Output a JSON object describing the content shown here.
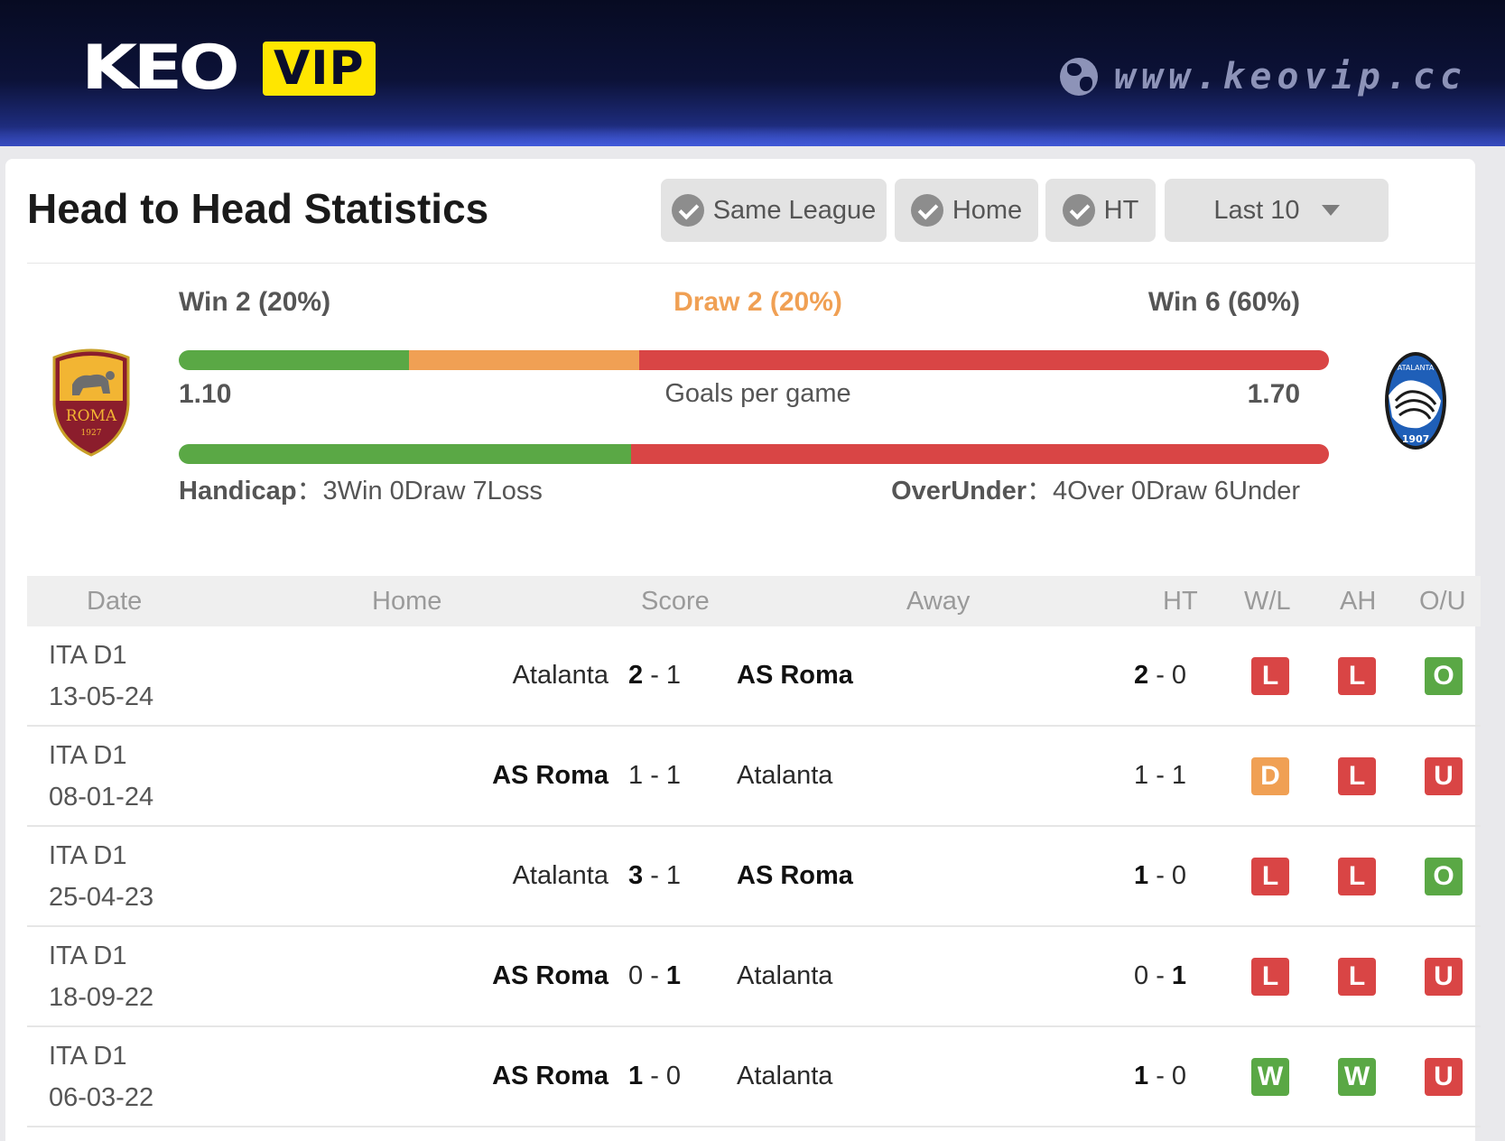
{
  "brand": {
    "logo_left": "KEO",
    "logo_right": "VIP",
    "site_url": "www.keovip.cc"
  },
  "title": "Head to Head Statistics",
  "filters": {
    "same_league": "Same League",
    "home": "Home",
    "ht": "HT",
    "last": "Last 10"
  },
  "summary": {
    "home_win": "Win 2 (20%)",
    "draw": "Draw 2 (20%)",
    "away_win": "Win 6 (60%)",
    "home_win_fraction": 0.2,
    "draw_fraction": 0.2,
    "away_win_fraction": 0.6,
    "home_goals": "1.10",
    "away_goals": "1.70",
    "goals_label": "Goals per game",
    "handicap_label": "Handicap",
    "handicap_value": "3Win 0Draw 7Loss",
    "overunder_label": "OverUnder",
    "overunder_value": "4Over 0Draw 6Under"
  },
  "teams": {
    "home_crest": "ROMA",
    "home_year": "1927",
    "away_crest": "ATALANTA",
    "away_year": "1907"
  },
  "colors": {
    "win": "#5aa845",
    "draw": "#f0a054",
    "loss": "#d94545",
    "bar_green": "#5aa845",
    "bar_orange": "#f0a054",
    "bar_red": "#d94545"
  },
  "table": {
    "headers": {
      "date": "Date",
      "home": "Home",
      "score": "Score",
      "away": "Away",
      "ht": "HT",
      "wl": "W/L",
      "ah": "AH",
      "ou": "O/U"
    },
    "rows": [
      {
        "league": "ITA D1",
        "date": "13-05-24",
        "home": "Atalanta",
        "home_bold": false,
        "score_home": "2",
        "score_away": "1",
        "away": "AS Roma",
        "away_bold": true,
        "ht_home": "2",
        "ht_away": "0",
        "wl": "L",
        "ah": "L",
        "ou": "O"
      },
      {
        "league": "ITA D1",
        "date": "08-01-24",
        "home": "AS Roma",
        "home_bold": true,
        "score_home": "1",
        "score_away": "1",
        "away": "Atalanta",
        "away_bold": false,
        "ht_home": "1",
        "ht_away": "1",
        "wl": "D",
        "ah": "L",
        "ou": "U"
      },
      {
        "league": "ITA D1",
        "date": "25-04-23",
        "home": "Atalanta",
        "home_bold": false,
        "score_home": "3",
        "score_away": "1",
        "away": "AS Roma",
        "away_bold": true,
        "ht_home": "1",
        "ht_away": "0",
        "wl": "L",
        "ah": "L",
        "ou": "O"
      },
      {
        "league": "ITA D1",
        "date": "18-09-22",
        "home": "AS Roma",
        "home_bold": true,
        "score_home": "0",
        "score_away": "1",
        "away": "Atalanta",
        "away_bold": false,
        "ht_home": "0",
        "ht_away": "1",
        "wl": "L",
        "ah": "L",
        "ou": "U"
      },
      {
        "league": "ITA D1",
        "date": "06-03-22",
        "home": "AS Roma",
        "home_bold": true,
        "score_home": "1",
        "score_away": "0",
        "away": "Atalanta",
        "away_bold": false,
        "ht_home": "1",
        "ht_away": "0",
        "wl": "W",
        "ah": "W",
        "ou": "U"
      }
    ]
  }
}
